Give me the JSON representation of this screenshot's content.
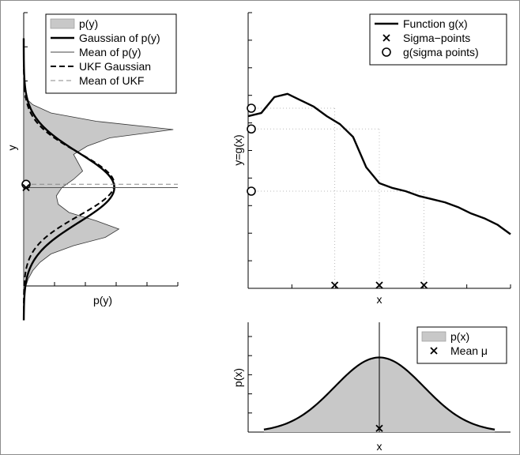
{
  "chart_data": [
    {
      "type": "area",
      "xlabel": "p(y)",
      "ylabel": "y",
      "legend": {
        "placement": "top-right",
        "entries": [
          "p(y)",
          "Gaussian of p(y)",
          "Mean of p(y)",
          "UKF Gaussian",
          "Mean of UKF"
        ]
      },
      "series": [
        {
          "name": "p(y)",
          "style": "gray-filled",
          "y": [
            -0.3,
            -0.25,
            -0.2,
            -0.15,
            -0.1,
            -0.05,
            0.0,
            0.05,
            0.1,
            0.15,
            0.2,
            0.25,
            0.3,
            0.35,
            0.4,
            0.45,
            0.5,
            0.55,
            0.6,
            0.65,
            0.7,
            0.75,
            0.8,
            0.85,
            0.9
          ],
          "x": [
            0.0,
            0.02,
            0.05,
            0.1,
            0.18,
            0.3,
            0.55,
            0.9,
            1.05,
            0.8,
            0.5,
            0.38,
            0.36,
            0.42,
            0.55,
            0.65,
            0.6,
            0.55,
            0.7,
            0.95,
            1.65,
            0.8,
            0.3,
            0.1,
            0.0
          ]
        },
        {
          "name": "Gaussian of p(y)",
          "style": "thick-solid",
          "mean": 0.35,
          "sd": 0.21,
          "peak": 1.0
        },
        {
          "name": "Mean of p(y)",
          "style": "thin-solid",
          "value": 0.35
        },
        {
          "name": "UKF Gaussian",
          "style": "dashed",
          "mean": 0.37,
          "sd": 0.19,
          "peak": 1.0
        },
        {
          "name": "Mean of UKF",
          "style": "thin-dashed-gray",
          "value": 0.37
        }
      ],
      "markers": [
        {
          "type": "o",
          "y": 0.37
        },
        {
          "type": "x",
          "y": 0.35
        }
      ]
    },
    {
      "type": "line",
      "xlabel": "x",
      "ylabel": "y=g(x)",
      "legend": {
        "placement": "top-right",
        "entries": [
          "Function g(x)",
          "Sigma−points",
          "g(sigma points)"
        ]
      },
      "series": [
        {
          "name": "Function g(x)",
          "x": [
            0.0,
            0.05,
            0.1,
            0.15,
            0.2,
            0.25,
            0.3,
            0.35,
            0.4,
            0.45,
            0.5,
            0.55,
            0.6,
            0.65,
            0.7,
            0.75,
            0.8,
            0.85,
            0.9,
            0.95,
            1.0
          ],
          "y": [
            0.6,
            0.62,
            0.72,
            0.74,
            0.7,
            0.66,
            0.6,
            0.55,
            0.47,
            0.28,
            0.18,
            0.15,
            0.13,
            0.1,
            0.08,
            0.06,
            0.03,
            -0.01,
            -0.04,
            -0.08,
            -0.14
          ]
        },
        {
          "name": "Sigma−points",
          "marker": "x",
          "x": [
            0.33,
            0.5,
            0.67
          ],
          "y": [
            -0.5,
            -0.5,
            -0.5
          ]
        },
        {
          "name": "g(sigma points)",
          "marker": "o",
          "y": [
            0.65,
            0.52,
            0.13
          ]
        }
      ]
    },
    {
      "type": "area",
      "xlabel": "x",
      "ylabel": "p(x)",
      "legend": {
        "placement": "top-right",
        "entries": [
          "p(x)",
          "Mean μ"
        ]
      },
      "series": [
        {
          "name": "p(x)",
          "style": "gray-filled-gaussian",
          "mean": 0.5,
          "sd": 0.17,
          "peak": 0.68,
          "xlim": [
            0.0,
            1.0
          ]
        },
        {
          "name": "Mean μ",
          "marker": "x",
          "x": 0.5,
          "y": 0.02
        }
      ],
      "ylim": [
        0,
        1
      ]
    }
  ]
}
